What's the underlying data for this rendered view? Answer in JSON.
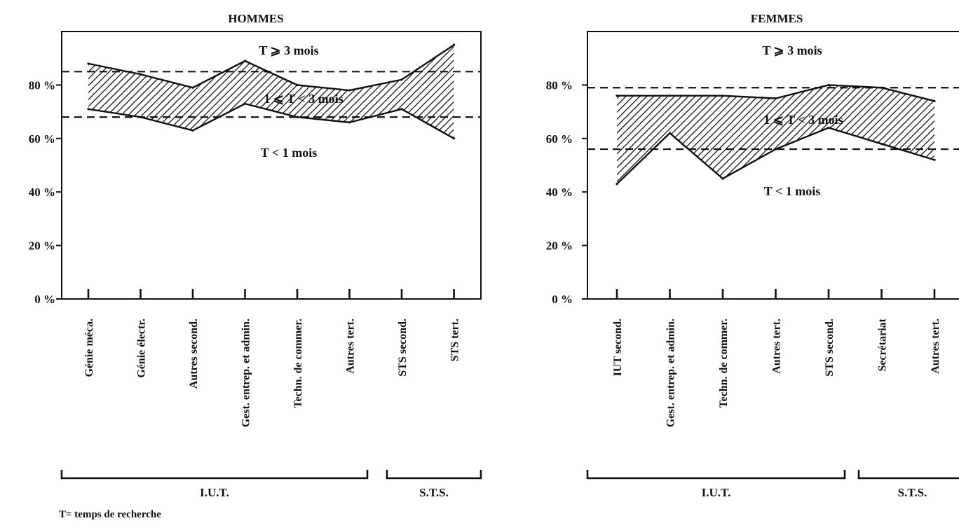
{
  "footnote": "T= temps de recherche",
  "chart_data": [
    {
      "type": "area",
      "title": "HOMMES",
      "y_ticks": [
        "80 %",
        "60 %",
        "40 %",
        "20 %",
        "0 %"
      ],
      "y_tick_values": [
        80,
        60,
        40,
        20,
        0
      ],
      "ylim": [
        0,
        100
      ],
      "categories": [
        "Génie méca.",
        "Génie électr.",
        "Autres second.",
        "Gest. entrep. et admin.",
        "Techn. de commer.",
        "Autres tert.",
        "STS second.",
        "STS tert."
      ],
      "series": [
        {
          "name": "1 ≤ T < 3 mois",
          "role": "band_top",
          "values": [
            88,
            84,
            79,
            89,
            80,
            78,
            82,
            95
          ]
        },
        {
          "name": "T < 1 mois",
          "role": "band_bottom",
          "values": [
            71,
            68,
            63,
            73,
            68,
            66,
            71,
            60
          ]
        }
      ],
      "reference_lines": [
        85,
        68
      ],
      "band_labels": {
        "above": "T ⩾ 3 mois",
        "band": "1 ⩽ T < 3 mois",
        "below": "T < 1 mois"
      },
      "groups": [
        {
          "label": "I.U.T.",
          "from": 0,
          "to": 5
        },
        {
          "label": "S.T.S.",
          "from": 6,
          "to": 7
        }
      ]
    },
    {
      "type": "area",
      "title": "FEMMES",
      "y_ticks": [
        "80 %",
        "60 %",
        "40 %",
        "20 %",
        "0 %"
      ],
      "y_tick_values": [
        80,
        60,
        40,
        20,
        0
      ],
      "ylim": [
        0,
        100
      ],
      "categories": [
        "IUT second.",
        "Gest. entrep. et admin.",
        "Techn. de commer.",
        "Autres tert.",
        "STS second.",
        "Secrétariat",
        "Autres tert."
      ],
      "series": [
        {
          "name": "1 ≤ T < 3 mois",
          "role": "band_top",
          "values": [
            76,
            76,
            76,
            75,
            80,
            79,
            74
          ]
        },
        {
          "name": "T < 1 mois",
          "role": "band_bottom",
          "values": [
            43,
            62,
            45,
            56,
            64,
            58,
            52
          ]
        }
      ],
      "reference_lines": [
        79,
        56
      ],
      "band_labels": {
        "above": "T ⩾ 3 mois",
        "band": "1 ⩽ T < 3 mois",
        "below": "T < 1 mois"
      },
      "groups": [
        {
          "label": "I.U.T.",
          "from": 0,
          "to": 4
        },
        {
          "label": "S.T.S.",
          "from": 5,
          "to": 6
        }
      ]
    }
  ]
}
